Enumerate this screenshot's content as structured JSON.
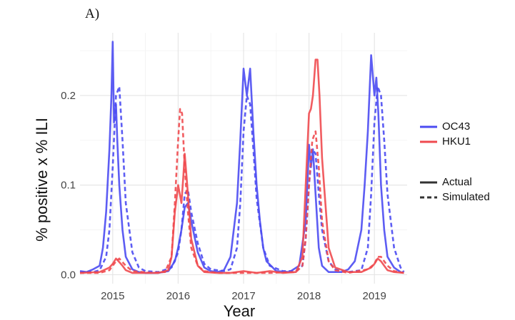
{
  "panel_label": "A)",
  "chart_data": {
    "type": "line",
    "xlabel": "Year",
    "ylabel": "% positive x % ILI",
    "xlim": [
      2014.5,
      2019.5
    ],
    "ylim": [
      -0.01,
      0.27
    ],
    "x_ticks": [
      2015,
      2016,
      2017,
      2018,
      2019
    ],
    "y_ticks": [
      0.0,
      0.1,
      0.2
    ],
    "y_tick_labels": [
      "0.0",
      "0.1",
      "0.2"
    ],
    "grid": true,
    "legend_placement": "right",
    "colors": {
      "OC43": "#4b4bf2",
      "HKU1": "#ef4a4f"
    },
    "legend": {
      "color_title": "",
      "color_entries": [
        "OC43",
        "HKU1"
      ],
      "linetype_entries": [
        "Actual",
        "Simulated"
      ]
    },
    "series": [
      {
        "name": "OC43",
        "type": "Actual",
        "x": [
          2014.5,
          2014.6,
          2014.7,
          2014.8,
          2014.85,
          2014.9,
          2014.95,
          2014.98,
          2015.0,
          2015.02,
          2015.05,
          2015.07,
          2015.1,
          2015.15,
          2015.2,
          2015.3,
          2015.4,
          2015.5,
          2015.7,
          2015.85,
          2015.95,
          2016.0,
          2016.05,
          2016.1,
          2016.15,
          2016.2,
          2016.3,
          2016.4,
          2016.5,
          2016.6,
          2016.7,
          2016.8,
          2016.9,
          2016.95,
          2017.0,
          2017.05,
          2017.1,
          2017.15,
          2017.2,
          2017.25,
          2017.3,
          2017.35,
          2017.5,
          2017.7,
          2017.85,
          2017.95,
          2018.0,
          2018.03,
          2018.06,
          2018.1,
          2018.15,
          2018.2,
          2018.3,
          2018.5,
          2018.6,
          2018.7,
          2018.8,
          2018.85,
          2018.9,
          2018.95,
          2019.0,
          2019.03,
          2019.06,
          2019.1,
          2019.15,
          2019.2,
          2019.3,
          2019.4,
          2019.45
        ],
        "y": [
          0.004,
          0.003,
          0.006,
          0.01,
          0.03,
          0.07,
          0.14,
          0.2,
          0.26,
          0.17,
          0.19,
          0.15,
          0.1,
          0.05,
          0.02,
          0.006,
          0.003,
          0.002,
          0.002,
          0.004,
          0.015,
          0.03,
          0.05,
          0.075,
          0.08,
          0.06,
          0.025,
          0.008,
          0.004,
          0.003,
          0.005,
          0.02,
          0.08,
          0.15,
          0.23,
          0.2,
          0.23,
          0.16,
          0.1,
          0.06,
          0.03,
          0.015,
          0.004,
          0.003,
          0.01,
          0.06,
          0.145,
          0.12,
          0.14,
          0.09,
          0.03,
          0.01,
          0.003,
          0.003,
          0.006,
          0.015,
          0.05,
          0.1,
          0.16,
          0.245,
          0.2,
          0.22,
          0.18,
          0.1,
          0.05,
          0.02,
          0.008,
          0.003,
          0.002
        ]
      },
      {
        "name": "OC43",
        "type": "Simulated",
        "x": [
          2014.5,
          2014.7,
          2014.8,
          2014.9,
          2014.95,
          2015.0,
          2015.05,
          2015.1,
          2015.15,
          2015.2,
          2015.3,
          2015.4,
          2015.5,
          2015.7,
          2015.9,
          2016.0,
          2016.05,
          2016.1,
          2016.15,
          2016.2,
          2016.3,
          2016.4,
          2016.5,
          2016.7,
          2016.8,
          2016.9,
          2016.95,
          2017.0,
          2017.05,
          2017.1,
          2017.15,
          2017.2,
          2017.3,
          2017.4,
          2017.6,
          2017.8,
          2017.9,
          2017.95,
          2018.0,
          2018.05,
          2018.1,
          2018.15,
          2018.2,
          2018.3,
          2018.4,
          2018.6,
          2018.8,
          2018.9,
          2018.95,
          2019.0,
          2019.05,
          2019.1,
          2019.15,
          2019.2,
          2019.3,
          2019.4,
          2019.45
        ],
        "y": [
          0.003,
          0.003,
          0.005,
          0.02,
          0.05,
          0.12,
          0.2,
          0.21,
          0.15,
          0.08,
          0.025,
          0.008,
          0.004,
          0.003,
          0.008,
          0.025,
          0.05,
          0.09,
          0.095,
          0.07,
          0.035,
          0.012,
          0.006,
          0.004,
          0.006,
          0.03,
          0.08,
          0.16,
          0.2,
          0.19,
          0.14,
          0.085,
          0.03,
          0.01,
          0.004,
          0.004,
          0.01,
          0.04,
          0.1,
          0.14,
          0.135,
          0.09,
          0.05,
          0.015,
          0.006,
          0.003,
          0.005,
          0.03,
          0.09,
          0.17,
          0.21,
          0.2,
          0.15,
          0.09,
          0.03,
          0.008,
          0.003
        ]
      },
      {
        "name": "HKU1",
        "type": "Actual",
        "x": [
          2014.5,
          2014.8,
          2014.95,
          2015.0,
          2015.05,
          2015.1,
          2015.15,
          2015.2,
          2015.3,
          2015.5,
          2015.7,
          2015.85,
          2015.9,
          2015.95,
          2016.0,
          2016.05,
          2016.08,
          2016.1,
          2016.15,
          2016.2,
          2016.3,
          2016.4,
          2016.6,
          2016.8,
          2017.0,
          2017.2,
          2017.4,
          2017.6,
          2017.8,
          2017.9,
          2017.95,
          2018.0,
          2018.03,
          2018.06,
          2018.1,
          2018.13,
          2018.16,
          2018.2,
          2018.3,
          2018.4,
          2018.6,
          2018.8,
          2018.95,
          2019.0,
          2019.05,
          2019.1,
          2019.15,
          2019.2,
          2019.3,
          2019.45
        ],
        "y": [
          0.002,
          0.003,
          0.008,
          0.012,
          0.018,
          0.014,
          0.01,
          0.005,
          0.002,
          0.002,
          0.002,
          0.005,
          0.02,
          0.07,
          0.1,
          0.08,
          0.11,
          0.135,
          0.09,
          0.04,
          0.01,
          0.003,
          0.002,
          0.002,
          0.004,
          0.002,
          0.004,
          0.002,
          0.003,
          0.02,
          0.1,
          0.18,
          0.185,
          0.2,
          0.24,
          0.24,
          0.2,
          0.13,
          0.03,
          0.008,
          0.003,
          0.003,
          0.008,
          0.012,
          0.018,
          0.015,
          0.01,
          0.005,
          0.003,
          0.002
        ]
      },
      {
        "name": "HKU1",
        "type": "Simulated",
        "x": [
          2014.5,
          2014.8,
          2014.95,
          2015.05,
          2015.1,
          2015.2,
          2015.3,
          2015.6,
          2015.8,
          2015.9,
          2015.95,
          2016.0,
          2016.03,
          2016.06,
          2016.1,
          2016.15,
          2016.2,
          2016.3,
          2016.4,
          2016.6,
          2017.0,
          2017.4,
          2017.8,
          2017.9,
          2017.95,
          2018.0,
          2018.05,
          2018.1,
          2018.15,
          2018.2,
          2018.3,
          2018.4,
          2018.6,
          2018.9,
          2019.0,
          2019.05,
          2019.1,
          2019.15,
          2019.2,
          2019.3,
          2019.45
        ],
        "y": [
          0.002,
          0.002,
          0.005,
          0.015,
          0.018,
          0.01,
          0.004,
          0.002,
          0.003,
          0.02,
          0.08,
          0.15,
          0.185,
          0.18,
          0.12,
          0.07,
          0.03,
          0.01,
          0.004,
          0.002,
          0.002,
          0.002,
          0.003,
          0.01,
          0.04,
          0.1,
          0.15,
          0.16,
          0.12,
          0.06,
          0.015,
          0.005,
          0.002,
          0.006,
          0.012,
          0.02,
          0.02,
          0.015,
          0.01,
          0.004,
          0.002
        ]
      }
    ]
  }
}
